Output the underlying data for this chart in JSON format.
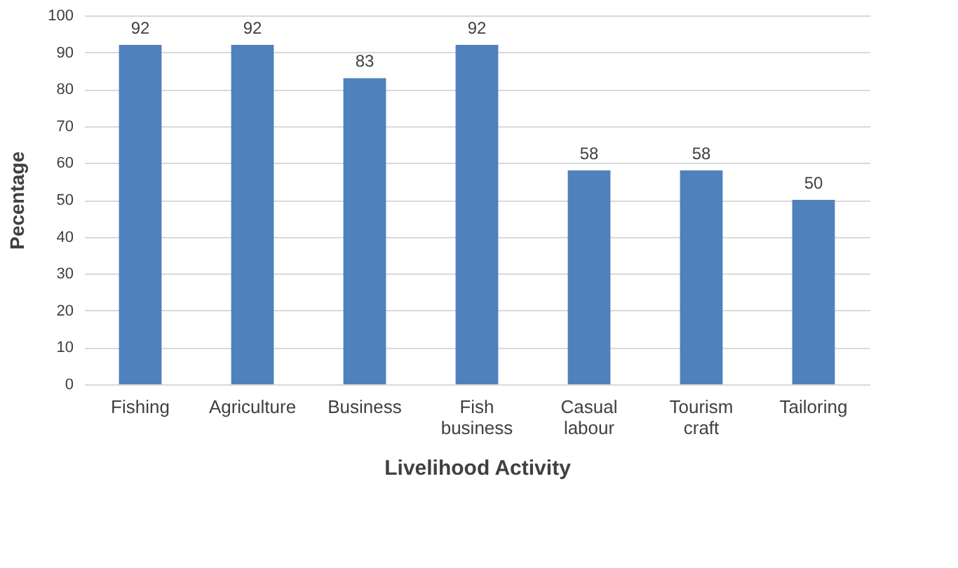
{
  "chart_data": {
    "type": "bar",
    "categories": [
      "Fishing",
      "Agriculture",
      "Business",
      "Fish business",
      "Casual labour",
      "Tourism craft",
      "Tailoring"
    ],
    "values": [
      92,
      92,
      83,
      92,
      58,
      58,
      50
    ],
    "color": "#4f81bd",
    "xlabel": "Livelihood Activity",
    "ylabel": "Pecentage",
    "ylim": [
      0,
      100
    ],
    "yticks": [
      0,
      10,
      20,
      30,
      40,
      50,
      60,
      70,
      80,
      90,
      100
    ],
    "grid": "y",
    "data_labels": true
  }
}
